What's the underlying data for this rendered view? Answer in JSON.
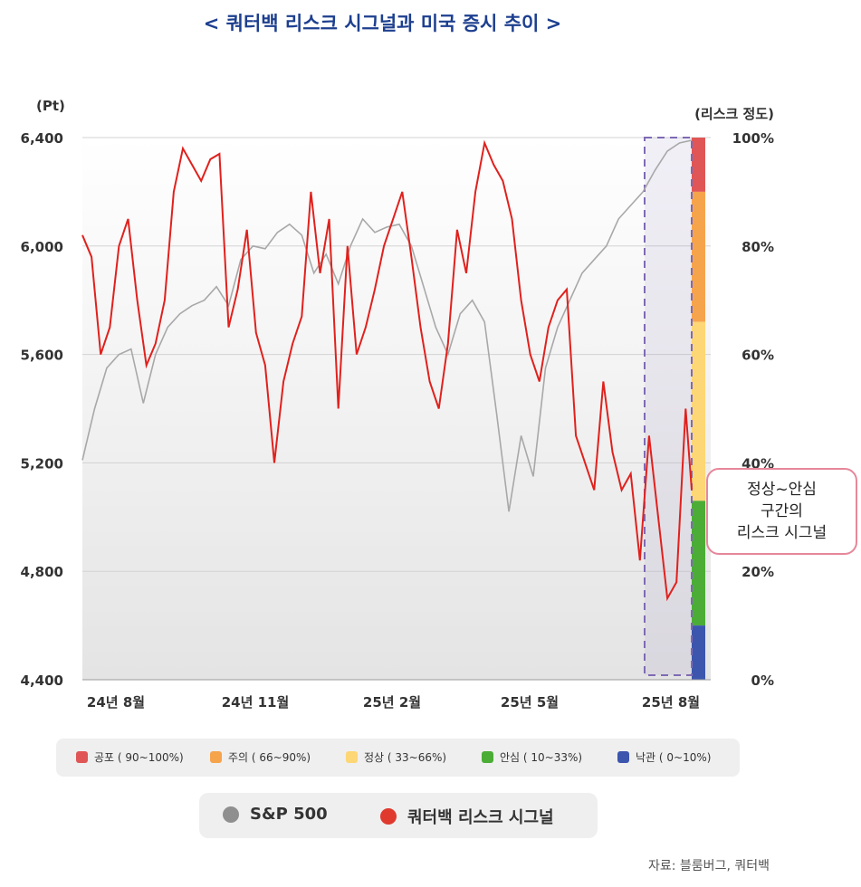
{
  "title": "< 쿼터백 리스크 시그널과 미국 증시 추이 >",
  "colors": {
    "sp500": "#a8a8a8",
    "signal": "#e0211d",
    "highlight_border": "#7f6ab3",
    "callout_border": "#e7879a",
    "title": "#1d3f8f"
  },
  "chart_data": {
    "type": "line",
    "x_ticks": [
      "24년 8월",
      "24년 11월",
      "25년 2월",
      "25년 5월",
      "25년 8월"
    ],
    "y_left": {
      "label": "(Pt)",
      "ticks": [
        "6,400",
        "6,000",
        "5,600",
        "5,200",
        "4,800",
        "4,400"
      ],
      "range": [
        4400,
        6400
      ]
    },
    "y_right": {
      "label": "(리스크 정도)",
      "ticks": [
        "100%",
        "80%",
        "60%",
        "40%",
        "20%",
        "0%"
      ],
      "range": [
        0,
        100
      ]
    },
    "risk_bands": [
      {
        "label": "공포 ( 90~100%)",
        "from": 90,
        "to": 100,
        "color": "#e05656"
      },
      {
        "label": "주의 ( 66~90%)",
        "from": 66,
        "to": 90,
        "color": "#f6a44c"
      },
      {
        "label": "정상 ( 33~66%)",
        "from": 33,
        "to": 66,
        "color": "#fdd675"
      },
      {
        "label": "안심 ( 10~33%)",
        "from": 10,
        "to": 33,
        "color": "#4bad36"
      },
      {
        "label": "낙관 ( 0~10%)",
        "from": 0,
        "to": 10,
        "color": "#3c56ae"
      }
    ],
    "series": [
      {
        "name": "S&P 500",
        "axis": "left",
        "t": [
          0,
          0.02,
          0.04,
          0.06,
          0.08,
          0.1,
          0.12,
          0.14,
          0.16,
          0.18,
          0.2,
          0.22,
          0.24,
          0.26,
          0.28,
          0.3,
          0.32,
          0.34,
          0.36,
          0.38,
          0.4,
          0.42,
          0.44,
          0.46,
          0.48,
          0.5,
          0.52,
          0.54,
          0.56,
          0.58,
          0.6,
          0.62,
          0.64,
          0.66,
          0.68,
          0.7,
          0.72,
          0.74,
          0.76,
          0.78,
          0.8,
          0.82,
          0.84,
          0.86,
          0.88,
          0.9,
          0.92,
          0.94,
          0.96,
          0.98,
          1.0
        ],
        "values": [
          5210,
          5400,
          5550,
          5600,
          5620,
          5420,
          5600,
          5700,
          5750,
          5780,
          5800,
          5850,
          5780,
          5950,
          6000,
          5990,
          6050,
          6080,
          6040,
          5900,
          5970,
          5860,
          6000,
          6100,
          6050,
          6070,
          6080,
          6000,
          5850,
          5700,
          5600,
          5750,
          5800,
          5720,
          5380,
          5020,
          5300,
          5150,
          5550,
          5700,
          5800,
          5900,
          5950,
          6000,
          6100,
          6150,
          6200,
          6280,
          6350,
          6380,
          6390
        ]
      },
      {
        "name": "쿼터백 리스크 시그널",
        "axis": "right",
        "t": [
          0,
          0.015,
          0.03,
          0.045,
          0.06,
          0.075,
          0.09,
          0.105,
          0.12,
          0.135,
          0.15,
          0.165,
          0.18,
          0.195,
          0.21,
          0.225,
          0.24,
          0.255,
          0.27,
          0.285,
          0.3,
          0.315,
          0.33,
          0.345,
          0.36,
          0.375,
          0.39,
          0.405,
          0.42,
          0.435,
          0.45,
          0.465,
          0.48,
          0.495,
          0.51,
          0.525,
          0.54,
          0.555,
          0.57,
          0.585,
          0.6,
          0.615,
          0.63,
          0.645,
          0.66,
          0.675,
          0.69,
          0.705,
          0.72,
          0.735,
          0.75,
          0.765,
          0.78,
          0.795,
          0.81,
          0.825,
          0.84,
          0.855,
          0.87,
          0.885,
          0.9,
          0.915,
          0.93,
          0.945,
          0.96,
          0.975,
          0.99,
          1.0
        ],
        "values": [
          82,
          78,
          60,
          65,
          80,
          85,
          70,
          58,
          62,
          70,
          90,
          98,
          95,
          92,
          96,
          97,
          65,
          72,
          83,
          64,
          58,
          40,
          55,
          62,
          67,
          90,
          75,
          85,
          50,
          80,
          60,
          65,
          72,
          80,
          85,
          90,
          78,
          65,
          55,
          50,
          62,
          83,
          75,
          90,
          99,
          95,
          92,
          85,
          70,
          60,
          55,
          65,
          70,
          72,
          45,
          40,
          35,
          55,
          42,
          35,
          38,
          22,
          45,
          30,
          15,
          18,
          50,
          35
        ]
      }
    ]
  },
  "callout": {
    "lines": [
      "정상~안심",
      "구간의",
      "리스크 시그널"
    ]
  },
  "legend_items": [
    {
      "label": "공포 ( 90~100%)",
      "color": "#e05656"
    },
    {
      "label": "주의 ( 66~90%)",
      "color": "#f6a44c"
    },
    {
      "label": "정상 ( 33~66%)",
      "color": "#fdd675"
    },
    {
      "label": "안심 ( 10~33%)",
      "color": "#4bad36"
    },
    {
      "label": "낙관 ( 0~10%)",
      "color": "#3c56ae"
    }
  ],
  "series_legend": [
    {
      "label": "S&P 500",
      "color": "#8f8f8f"
    },
    {
      "label": "쿼터백 리스크 시그널",
      "color": "#e03a2e"
    }
  ],
  "source": "자료: 블룸버그, 쿼터백"
}
